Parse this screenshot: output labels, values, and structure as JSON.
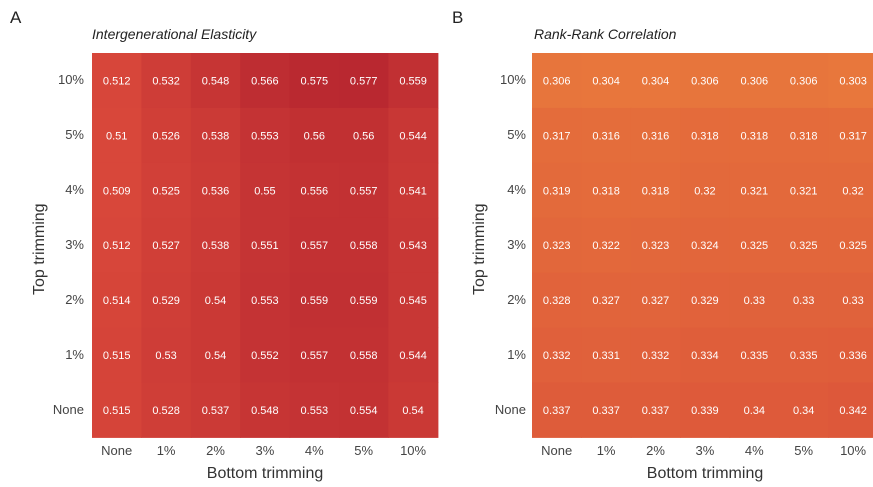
{
  "chart_data": [
    {
      "type": "heatmap",
      "panel_label": "A",
      "title": "Intergenerational Elasticity",
      "xlabel": "Bottom trimming",
      "ylabel": "Top trimming",
      "x_categories": [
        "None",
        "1%",
        "2%",
        "3%",
        "4%",
        "5%",
        "10%"
      ],
      "y_categories": [
        "10%",
        "5%",
        "4%",
        "3%",
        "2%",
        "1%",
        "None"
      ],
      "values": [
        [
          "0.512",
          "0.532",
          "0.548",
          "0.566",
          "0.575",
          "0.577",
          "0.559"
        ],
        [
          "0.51",
          "0.526",
          "0.538",
          "0.553",
          "0.56",
          "0.56",
          "0.544"
        ],
        [
          "0.509",
          "0.525",
          "0.536",
          "0.55",
          "0.556",
          "0.557",
          "0.541"
        ],
        [
          "0.512",
          "0.527",
          "0.538",
          "0.551",
          "0.557",
          "0.558",
          "0.543"
        ],
        [
          "0.514",
          "0.529",
          "0.54",
          "0.553",
          "0.559",
          "0.559",
          "0.545"
        ],
        [
          "0.515",
          "0.53",
          "0.54",
          "0.552",
          "0.557",
          "0.558",
          "0.544"
        ],
        [
          "0.515",
          "0.528",
          "0.537",
          "0.548",
          "0.553",
          "0.554",
          "0.54"
        ]
      ]
    },
    {
      "type": "heatmap",
      "panel_label": "B",
      "title": "Rank-Rank Correlation",
      "xlabel": "Bottom trimming",
      "ylabel": "Top trimming",
      "x_categories": [
        "None",
        "1%",
        "2%",
        "3%",
        "4%",
        "5%",
        "10%"
      ],
      "y_categories": [
        "10%",
        "5%",
        "4%",
        "3%",
        "2%",
        "1%",
        "None"
      ],
      "values": [
        [
          "0.306",
          "0.304",
          "0.304",
          "0.306",
          "0.306",
          "0.306",
          "0.303"
        ],
        [
          "0.317",
          "0.316",
          "0.316",
          "0.318",
          "0.318",
          "0.318",
          "0.317"
        ],
        [
          "0.319",
          "0.318",
          "0.318",
          "0.32",
          "0.321",
          "0.321",
          "0.32"
        ],
        [
          "0.323",
          "0.322",
          "0.323",
          "0.324",
          "0.325",
          "0.325",
          "0.325"
        ],
        [
          "0.328",
          "0.327",
          "0.327",
          "0.329",
          "0.33",
          "0.33",
          "0.33"
        ],
        [
          "0.332",
          "0.331",
          "0.332",
          "0.334",
          "0.335",
          "0.335",
          "0.336"
        ],
        [
          "0.337",
          "0.337",
          "0.337",
          "0.339",
          "0.34",
          "0.34",
          "0.342"
        ]
      ]
    }
  ],
  "colors": {
    "panel_a_low": "#d8473a",
    "panel_a_high": "#b92830",
    "panel_b_low": "#e8773c",
    "panel_b_high": "#dd583a",
    "cell_text": "#ffffff"
  }
}
